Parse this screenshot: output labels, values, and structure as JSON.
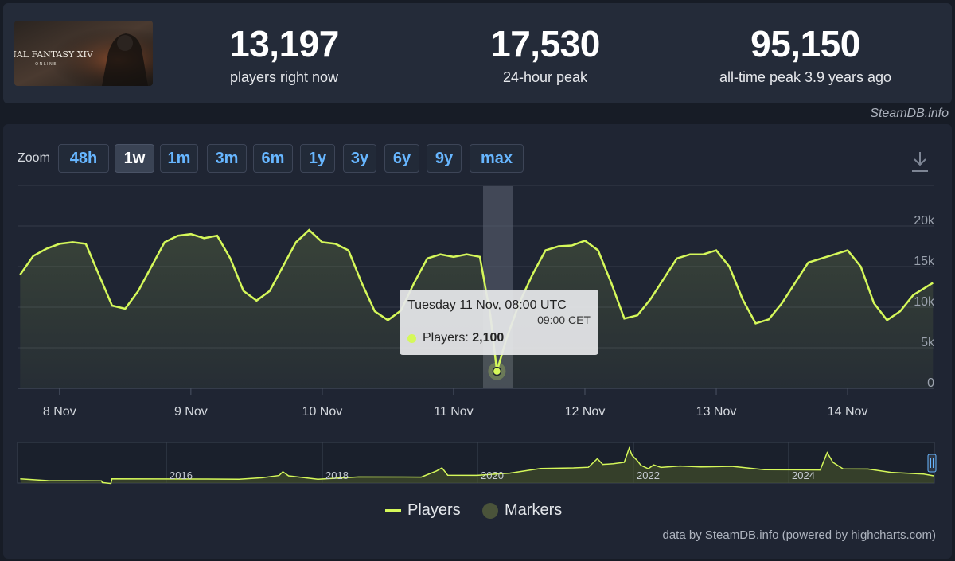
{
  "game": {
    "logo_text": "FINAL FANTASY XIV",
    "logo_sub": "ONLINE"
  },
  "stats": [
    {
      "value": "13,197",
      "label": "players right now"
    },
    {
      "value": "17,530",
      "label": "24-hour peak"
    },
    {
      "value": "95,150",
      "label": "all-time peak 3.9 years ago"
    }
  ],
  "credit_top": "SteamDB.info",
  "zoom": {
    "label": "Zoom",
    "buttons": [
      "48h",
      "1w",
      "1m",
      "3m",
      "6m",
      "1y",
      "3y",
      "6y",
      "9y",
      "max"
    ],
    "active": "1w"
  },
  "tooltip": {
    "title": "Tuesday 11 Nov, 08:00 UTC",
    "subtitle": "09:00 CET",
    "series_label": "Players:",
    "value": "2,100"
  },
  "navigator": {
    "year_labels": [
      "2016",
      "2018",
      "2020",
      "2022",
      "2024"
    ]
  },
  "legend": {
    "players": "Players",
    "markers": "Markers"
  },
  "credit_bottom": "data by SteamDB.info (powered by highcharts.com)",
  "colors": {
    "series": "#d5f85a",
    "link": "#67b6ff",
    "background": "#171c26",
    "card": "#1f2533"
  },
  "chart_data": {
    "type": "area",
    "y_axis": {
      "ticks": [
        "0",
        "5k",
        "10k",
        "15k",
        "20k"
      ],
      "range": [
        0,
        25000
      ]
    },
    "x_axis": {
      "tick_labels": [
        "8 Nov",
        "9 Nov",
        "10 Nov",
        "11 Nov",
        "12 Nov",
        "13 Nov",
        "14 Nov"
      ]
    },
    "series": [
      {
        "name": "Players",
        "points": [
          [
            7.7,
            14000
          ],
          [
            7.8,
            16300
          ],
          [
            7.9,
            17200
          ],
          [
            8.0,
            17800
          ],
          [
            8.1,
            18000
          ],
          [
            8.2,
            17800
          ],
          [
            8.3,
            14000
          ],
          [
            8.4,
            10200
          ],
          [
            8.5,
            9800
          ],
          [
            8.6,
            12000
          ],
          [
            8.7,
            15000
          ],
          [
            8.8,
            18000
          ],
          [
            8.9,
            18800
          ],
          [
            9.0,
            19000
          ],
          [
            9.1,
            18500
          ],
          [
            9.2,
            18800
          ],
          [
            9.3,
            16000
          ],
          [
            9.4,
            12000
          ],
          [
            9.5,
            10800
          ],
          [
            9.6,
            12000
          ],
          [
            9.7,
            15000
          ],
          [
            9.8,
            18000
          ],
          [
            9.9,
            19500
          ],
          [
            10.0,
            18000
          ],
          [
            10.1,
            17800
          ],
          [
            10.2,
            17000
          ],
          [
            10.3,
            13000
          ],
          [
            10.4,
            9500
          ],
          [
            10.5,
            8400
          ],
          [
            10.6,
            9600
          ],
          [
            10.7,
            13000
          ],
          [
            10.8,
            16000
          ],
          [
            10.9,
            16500
          ],
          [
            11.0,
            16200
          ],
          [
            11.1,
            16500
          ],
          [
            11.2,
            16200
          ],
          [
            11.28,
            9000
          ],
          [
            11.33,
            2100
          ],
          [
            11.4,
            6000
          ],
          [
            11.5,
            10500
          ],
          [
            11.6,
            14000
          ],
          [
            11.7,
            17000
          ],
          [
            11.8,
            17500
          ],
          [
            11.9,
            17600
          ],
          [
            12.0,
            18200
          ],
          [
            12.1,
            17000
          ],
          [
            12.2,
            13000
          ],
          [
            12.3,
            8600
          ],
          [
            12.4,
            9000
          ],
          [
            12.5,
            11000
          ],
          [
            12.6,
            13500
          ],
          [
            12.7,
            16000
          ],
          [
            12.8,
            16500
          ],
          [
            12.9,
            16500
          ],
          [
            13.0,
            17000
          ],
          [
            13.1,
            15000
          ],
          [
            13.2,
            11000
          ],
          [
            13.3,
            8000
          ],
          [
            13.4,
            8500
          ],
          [
            13.5,
            10500
          ],
          [
            13.6,
            13000
          ],
          [
            13.7,
            15500
          ],
          [
            13.8,
            16000
          ],
          [
            13.9,
            16500
          ],
          [
            14.0,
            17000
          ],
          [
            14.1,
            15000
          ],
          [
            14.2,
            10500
          ],
          [
            14.3,
            8400
          ],
          [
            14.4,
            9500
          ],
          [
            14.5,
            11500
          ],
          [
            14.65,
            13000
          ]
        ]
      }
    ],
    "highlighted_point": {
      "x": 11.33,
      "y": 2100
    }
  }
}
